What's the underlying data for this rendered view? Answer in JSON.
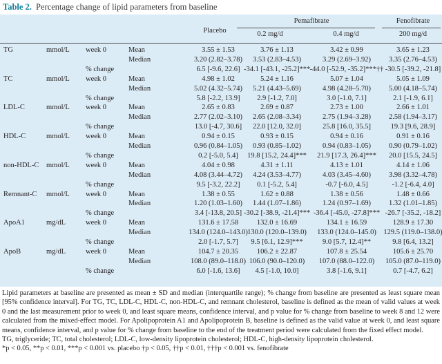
{
  "caption": {
    "number": "Table 2.",
    "title": "Percentage change of lipid parameters from baseline"
  },
  "header": {
    "placebo": "Placebo",
    "pemafibrate": "Pemafibrate",
    "pema_low": "0.2 mg/d",
    "pema_high": "0.4 mg/d",
    "fenofibrate": "Fenofibrate",
    "feno_dose": "200 mg/d"
  },
  "sections": [
    {
      "param": "TG",
      "unit": "mmol/L",
      "rows": [
        {
          "time": "week 0",
          "stat": "Mean",
          "v": [
            "3.55 ± 1.53",
            "3.76 ± 1.13",
            "3.42 ± 0.99",
            "3.65 ± 1.23"
          ]
        },
        {
          "time": "",
          "stat": "Median",
          "v": [
            "3.20 (2.82–3.78)",
            "3.53 (2.83–4.53)",
            "3.29 (2.69–3.92)",
            "3.35 (2.76–4.53)"
          ]
        },
        {
          "time": "% change",
          "stat": "",
          "v": [
            "6.5 [-9.6, 22.6]",
            "-34.1 [-43.1, -25.2]***",
            "-44.0 [-52.9, -35.2]***††",
            "-30.5 [-39.2, -21.8]"
          ]
        }
      ]
    },
    {
      "param": "TC",
      "unit": "mmol/L",
      "rows": [
        {
          "time": "week 0",
          "stat": "Mean",
          "v": [
            "4.98 ± 1.02",
            "5.24 ± 1.16",
            "5.07 ± 1.04",
            "5.05 ± 1.09"
          ]
        },
        {
          "time": "",
          "stat": "Median",
          "v": [
            "5.02 (4.32–5.74)",
            "5.21 (4.43–5.69)",
            "4.98 (4.28–5.70)",
            "5.00 (4.18–5.74)"
          ]
        },
        {
          "time": "% change",
          "stat": "",
          "v": [
            "5.8 [-2.2, 13.9]",
            "2.9 [-1.2, 7.0]",
            "3.0 [-1.0, 7.1]",
            "2.1 [-1.9, 6.1]"
          ]
        }
      ]
    },
    {
      "param": "LDL-C",
      "unit": "mmol/L",
      "rows": [
        {
          "time": "week 0",
          "stat": "Mean",
          "v": [
            "2.65 ± 0.83",
            "2.69 ± 0.87",
            "2.73 ± 1.00",
            "2.66 ± 1.01"
          ]
        },
        {
          "time": "",
          "stat": "Median",
          "v": [
            "2.77 (2.02–3.10)",
            "2.65 (2.08–3.34)",
            "2.75 (1.94–3.28)",
            "2.58 (1.94–3.17)"
          ]
        },
        {
          "time": "% change",
          "stat": "",
          "v": [
            "13.0 [-4.7, 30.6]",
            "22.0 [12.0, 32.0]",
            "25.8 [16.0, 35.5]",
            "19.3 [9.6, 28.9]"
          ]
        }
      ]
    },
    {
      "param": "HDL-C",
      "unit": "mmol/L",
      "rows": [
        {
          "time": "week 0",
          "stat": "Mean",
          "v": [
            "0.94 ± 0.15",
            "0.93 ± 0.15",
            "0.94 ± 0.16",
            "0.91 ± 0.16"
          ]
        },
        {
          "time": "",
          "stat": "Median",
          "v": [
            "0.96 (0.84–1.05)",
            "0.93 (0.85–1.02)",
            "0.94 (0.83–1.05)",
            "0.90 (0.79–1.02)"
          ]
        },
        {
          "time": "% change",
          "stat": "",
          "v": [
            "0.2 [-5.0, 5.4]",
            "19.8 [15.2, 24.4]***",
            "21.9 [17.3, 26.4]***",
            "20.0 [15.5, 24.5]"
          ]
        }
      ]
    },
    {
      "param": "non-HDL-C",
      "unit": "mmol/L",
      "rows": [
        {
          "time": "week 0",
          "stat": "Mean",
          "v": [
            "4.04 ± 0.98",
            "4.31 ± 1.11",
            "4.13 ± 1.01",
            "4.14 ± 1.06"
          ]
        },
        {
          "time": "",
          "stat": "Median",
          "v": [
            "4.08 (3.44–4.72)",
            "4.24 (3.53–4.77)",
            "4.03 (3.45–4.60)",
            "3.98 (3.32–4.78)"
          ]
        },
        {
          "time": "% change",
          "stat": "",
          "v": [
            "9.5 [-3.2, 22.2]",
            "0.1 [-5.2, 5.4]",
            "-0.7 [-6.0, 4.5]",
            "-1.2 [-6.4, 4.0]"
          ]
        }
      ]
    },
    {
      "param": "Remnant-C",
      "unit": "mmol/L",
      "rows": [
        {
          "time": "week 0",
          "stat": "Mean",
          "v": [
            "1.38 ± 0.55",
            "1.62 ± 0.88",
            "1.38 ± 0.56",
            "1.48 ± 0.66"
          ]
        },
        {
          "time": "",
          "stat": "Median",
          "v": [
            "1.20 (1.03–1.60)",
            "1.44 (1.07–1.86)",
            "1.24 (0.97–1.69)",
            "1.32 (1.01–1.85)"
          ]
        },
        {
          "time": "% change",
          "stat": "",
          "v": [
            "3.4 [-13.8, 20.5]",
            "-30.2 [-38.9, -21.4]***",
            "-36.4 [-45.0, -27.8]***",
            "-26.7 [-35.2, -18.2]"
          ]
        }
      ]
    },
    {
      "param": "ApoA1",
      "unit": "mg/dL",
      "rows": [
        {
          "time": "week 0",
          "stat": "Mean",
          "v": [
            "131.6 ± 17.58",
            "132.0 ± 16.69",
            "134.1 ± 16.59",
            "128.9 ± 17.30"
          ]
        },
        {
          "time": "",
          "stat": "Median",
          "v": [
            "134.0 (124.0–143.0)",
            "130.0 (120.0–139.0)",
            "133.0 (124.0–145.0)",
            "129.5 (119.0–138.0)"
          ]
        },
        {
          "time": "% change",
          "stat": "",
          "v": [
            "2.0 [-1.7, 5.7]",
            "9.5 [6.1, 12.9]***",
            "9.0 [5.7, 12.4]**",
            "9.8 [6.4, 13.2]"
          ]
        }
      ]
    },
    {
      "param": "ApoB",
      "unit": "mg/dL",
      "rows": [
        {
          "time": "week 0",
          "stat": "Mean",
          "v": [
            "104.7 ± 20.35",
            "106.2 ± 22.87",
            "107.8 ± 25.54",
            "105.6 ± 25.70"
          ]
        },
        {
          "time": "",
          "stat": "Median",
          "v": [
            "108.0 (89.0–118.0)",
            "106.0 (90.0–120.0)",
            "107.0 (88.0–122.0)",
            "105.0 (87.0–119.0)"
          ]
        },
        {
          "time": "% change",
          "stat": "",
          "v": [
            "6.0 [-1.6, 13.6]",
            "4.5 [-1.0, 10.0]",
            "3.8 [-1.6, 9.1]",
            "0.7 [-4.7, 6.2]"
          ]
        }
      ]
    }
  ],
  "footnotes": [
    "Lipid parameters at baseline are presented as mean ± SD and median (interquartile range); % change from baseline are presented as least square mean [95% confidence interval]. For TG, TC, LDL-C, HDL-C, non-HDL-C, and remnant cholesterol, baseline is defined as the mean of valid values at week 0 and the last measurement prior to week 0, and least square means, confidence interval, and p value for % change from baseline to week 8 and 12 were calculated from the mixed-effect model. For Apolipoprotein A1 and Apolipoprotein B, baseline is defined as the valid value at week 0, and least square means, confidence interval, and p value for % change from baseline to the end of the treatment period were calculated from the fixed effect model.",
    "TG, triglyceride; TC, total cholesterol; LDL-C, low-density lipoprotein cholesterol; HDL-C, high-density lipoprotein cholesterol.",
    "*p < 0.05, **p < 0.01, ***p < 0.001 vs. placebo    †p < 0.05, ††p < 0.01, †††p < 0.001 vs. fenofibrate"
  ]
}
